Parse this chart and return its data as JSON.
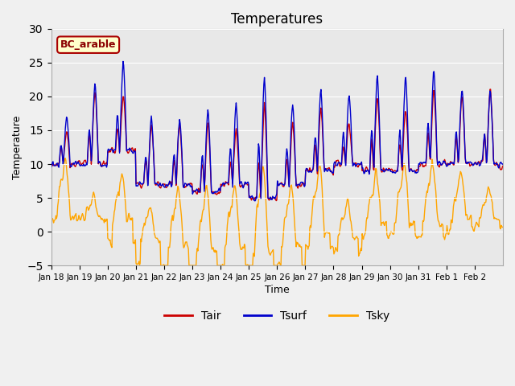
{
  "title": "Temperatures",
  "xlabel": "Time",
  "ylabel": "Temperature",
  "ylim": [
    -5,
    30
  ],
  "yticks": [
    -5,
    0,
    5,
    10,
    15,
    20,
    25,
    30
  ],
  "background_color": "#f0f0f0",
  "plot_bg_color": "#e8e8e8",
  "line_colors": {
    "Tair": "#cc0000",
    "Tsurf": "#0000cc",
    "Tsky": "#ffa500"
  },
  "line_widths": {
    "Tair": 1.0,
    "Tsurf": 1.0,
    "Tsky": 1.0
  },
  "annotation_text": "BC_arable",
  "annotation_bg": "#ffffcc",
  "annotation_border": "#aa0000",
  "xtick_labels": [
    "Jan 18",
    "Jan 19",
    "Jan 20",
    "Jan 21",
    "Jan 22",
    "Jan 23",
    "Jan 24",
    "Jan 25",
    "Jan 26",
    "Jan 27",
    "Jan 28",
    "Jan 29",
    "Jan 30",
    "Jan 31",
    "Feb 1",
    "Feb 2"
  ],
  "n_days": 16,
  "pts_per_day": 48
}
